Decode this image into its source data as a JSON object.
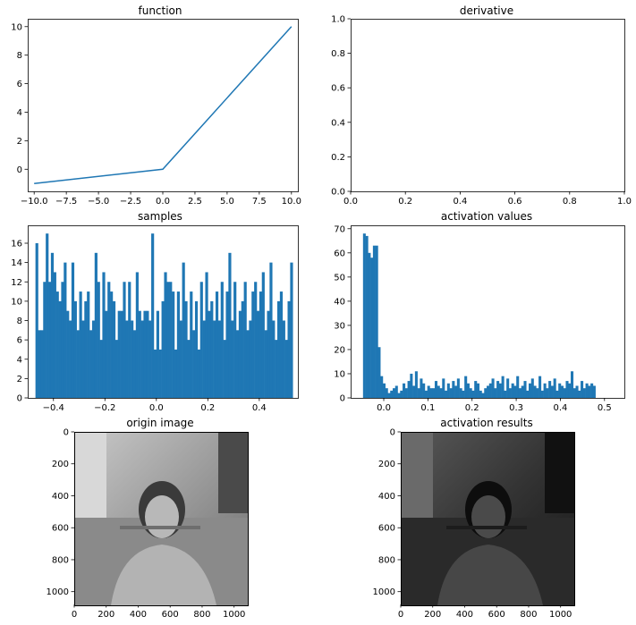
{
  "chart_data": [
    {
      "id": "function",
      "type": "line",
      "title": "function",
      "x": [
        -10.0,
        0.0,
        10.0
      ],
      "y": [
        -1.0,
        0.0,
        10.0
      ],
      "xlim": [
        -10.5,
        10.5
      ],
      "ylim": [
        -1.55,
        10.55
      ],
      "xticks": [
        -10.0,
        -7.5,
        -5.0,
        -2.5,
        0.0,
        2.5,
        5.0,
        7.5,
        10.0
      ],
      "xtick_labels": [
        "−10.0",
        "−7.5",
        "−5.0",
        "−2.5",
        "0.0",
        "2.5",
        "5.0",
        "7.5",
        "10.0"
      ],
      "yticks": [
        0,
        2,
        4,
        6,
        8,
        10
      ],
      "ytick_labels": [
        "0",
        "2",
        "4",
        "6",
        "8",
        "10"
      ],
      "color": "#1f77b4",
      "grid": false
    },
    {
      "id": "derivative",
      "type": "line",
      "title": "derivative",
      "x": [],
      "y": [],
      "xlim": [
        0.0,
        1.0
      ],
      "ylim": [
        0.0,
        1.0
      ],
      "xticks": [
        0.0,
        0.2,
        0.4,
        0.6,
        0.8,
        1.0
      ],
      "xtick_labels": [
        "0.0",
        "0.2",
        "0.4",
        "0.6",
        "0.8",
        "1.0"
      ],
      "yticks": [
        0.0,
        0.2,
        0.4,
        0.6,
        0.8,
        1.0
      ],
      "ytick_labels": [
        "0.0",
        "0.2",
        "0.4",
        "0.6",
        "0.8",
        "1.0"
      ],
      "grid": false
    },
    {
      "id": "samples",
      "type": "bar",
      "title": "samples",
      "bin_start": -0.47,
      "bin_width": 0.01,
      "values": [
        16,
        7,
        7,
        12,
        17,
        12,
        15,
        13,
        11,
        10,
        12,
        14,
        9,
        8,
        14,
        10,
        7,
        11,
        8,
        10,
        11,
        7,
        8,
        15,
        12,
        6,
        13,
        9,
        12,
        11,
        10,
        6,
        9,
        9,
        12,
        8,
        12,
        8,
        7,
        13,
        9,
        8,
        9,
        9,
        8,
        17,
        5,
        9,
        5,
        10,
        13,
        12,
        12,
        11,
        5,
        11,
        8,
        14,
        10,
        6,
        11,
        7,
        10,
        5,
        12,
        8,
        13,
        9,
        10,
        8,
        11,
        8,
        12,
        6,
        11,
        15,
        8,
        12,
        7,
        9,
        10,
        12,
        7,
        8,
        11,
        12,
        9,
        11,
        13,
        7,
        9,
        14,
        8,
        6,
        10,
        11,
        8,
        6,
        10,
        14
      ],
      "xlim": [
        -0.5,
        0.55
      ],
      "ylim": [
        0,
        17.85
      ],
      "xticks": [
        -0.4,
        -0.2,
        0.0,
        0.2,
        0.4
      ],
      "xtick_labels": [
        "−0.4",
        "−0.2",
        "0.0",
        "0.2",
        "0.4"
      ],
      "yticks": [
        0,
        2,
        4,
        6,
        8,
        10,
        12,
        14,
        16
      ],
      "ytick_labels": [
        "0",
        "2",
        "4",
        "6",
        "8",
        "10",
        "12",
        "14",
        "16"
      ],
      "color": "#1f77b4",
      "grid": false
    },
    {
      "id": "activation",
      "type": "bar",
      "title": "activation values",
      "bin_start": -0.047,
      "bin_width": 0.0056,
      "values": [
        68,
        67,
        60,
        58,
        63,
        63,
        21,
        9,
        6,
        4,
        2,
        3,
        4,
        5,
        2,
        3,
        6,
        4,
        7,
        10,
        5,
        11,
        4,
        8,
        6,
        3,
        5,
        4,
        4,
        7,
        5,
        4,
        8,
        3,
        6,
        4,
        7,
        5,
        8,
        4,
        3,
        9,
        6,
        4,
        3,
        7,
        6,
        3,
        2,
        4,
        5,
        6,
        8,
        4,
        7,
        6,
        9,
        3,
        8,
        4,
        6,
        5,
        9,
        4,
        5,
        7,
        3,
        6,
        8,
        5,
        4,
        9,
        3,
        6,
        4,
        7,
        5,
        8,
        3,
        6,
        5,
        4,
        7,
        6,
        11,
        4,
        5,
        3,
        7,
        4,
        6,
        5,
        6,
        5
      ],
      "xlim": [
        -0.075,
        0.545
      ],
      "ylim": [
        0,
        71.4
      ],
      "xticks": [
        0.0,
        0.1,
        0.2,
        0.3,
        0.4,
        0.5
      ],
      "xtick_labels": [
        "0.0",
        "0.1",
        "0.2",
        "0.3",
        "0.4",
        "0.5"
      ],
      "yticks": [
        0,
        10,
        20,
        30,
        40,
        50,
        60,
        70
      ],
      "ytick_labels": [
        "0",
        "10",
        "20",
        "30",
        "40",
        "50",
        "60",
        "70"
      ],
      "color": "#1f77b4",
      "grid": false
    },
    {
      "id": "origin",
      "type": "image",
      "title": "origin image",
      "xlim": [
        0,
        1080
      ],
      "ylim": [
        1080,
        0
      ],
      "xticks": [
        0,
        200,
        400,
        600,
        800,
        1000
      ],
      "xtick_labels": [
        "0",
        "200",
        "400",
        "600",
        "800",
        "1000"
      ],
      "yticks": [
        0,
        200,
        400,
        600,
        800,
        1000
      ],
      "ytick_labels": [
        "0",
        "200",
        "400",
        "600",
        "800",
        "1000"
      ],
      "tone": "grayscale"
    },
    {
      "id": "result",
      "type": "image",
      "title": "activation results",
      "xlim": [
        0,
        1080
      ],
      "ylim": [
        1080,
        0
      ],
      "xticks": [
        0,
        200,
        400,
        600,
        800,
        1000
      ],
      "xtick_labels": [
        "0",
        "200",
        "400",
        "600",
        "800",
        "1000"
      ],
      "yticks": [
        0,
        200,
        400,
        600,
        800,
        1000
      ],
      "ytick_labels": [
        "0",
        "200",
        "400",
        "600",
        "800",
        "1000"
      ],
      "tone": "darkened grayscale"
    }
  ]
}
